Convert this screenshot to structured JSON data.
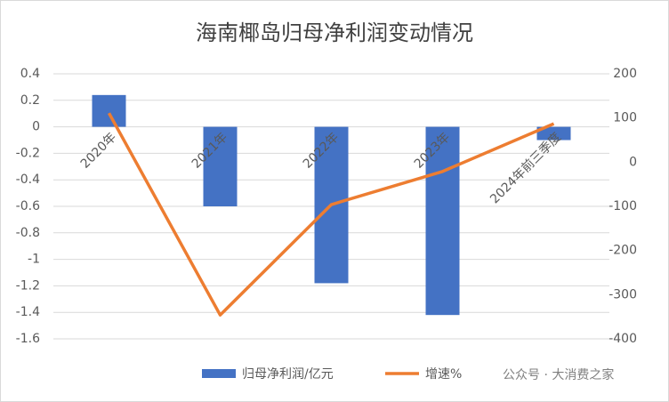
{
  "chart_data": {
    "type": "combo",
    "title": "海南椰岛归母净利润变动情况",
    "categories": [
      "2020年",
      "2021年",
      "2022年",
      "2023年",
      "2024年前三季度"
    ],
    "series": [
      {
        "name": "归母净利润/亿元",
        "type": "bar",
        "color": "#4472c4",
        "values": [
          0.24,
          -0.6,
          -1.18,
          -1.42,
          -0.1
        ]
      },
      {
        "name": "增速%",
        "type": "line",
        "color": "#ed7d31",
        "axis": "y2",
        "values": [
          111,
          -346,
          -96,
          -21,
          87
        ]
      }
    ],
    "ylim": [
      -1.6,
      0.4
    ],
    "yticks": [
      0.4,
      0.2,
      0,
      -0.2,
      -0.4,
      -0.6,
      -0.8,
      -1,
      -1.2,
      -1.4,
      -1.6
    ],
    "y2lim": [
      -400,
      200
    ],
    "y2ticks": [
      200,
      100,
      0,
      -100,
      -200,
      -300,
      -400
    ],
    "grid": true,
    "legend": "bottom",
    "watermark": "公众号 · 大消费之家"
  }
}
